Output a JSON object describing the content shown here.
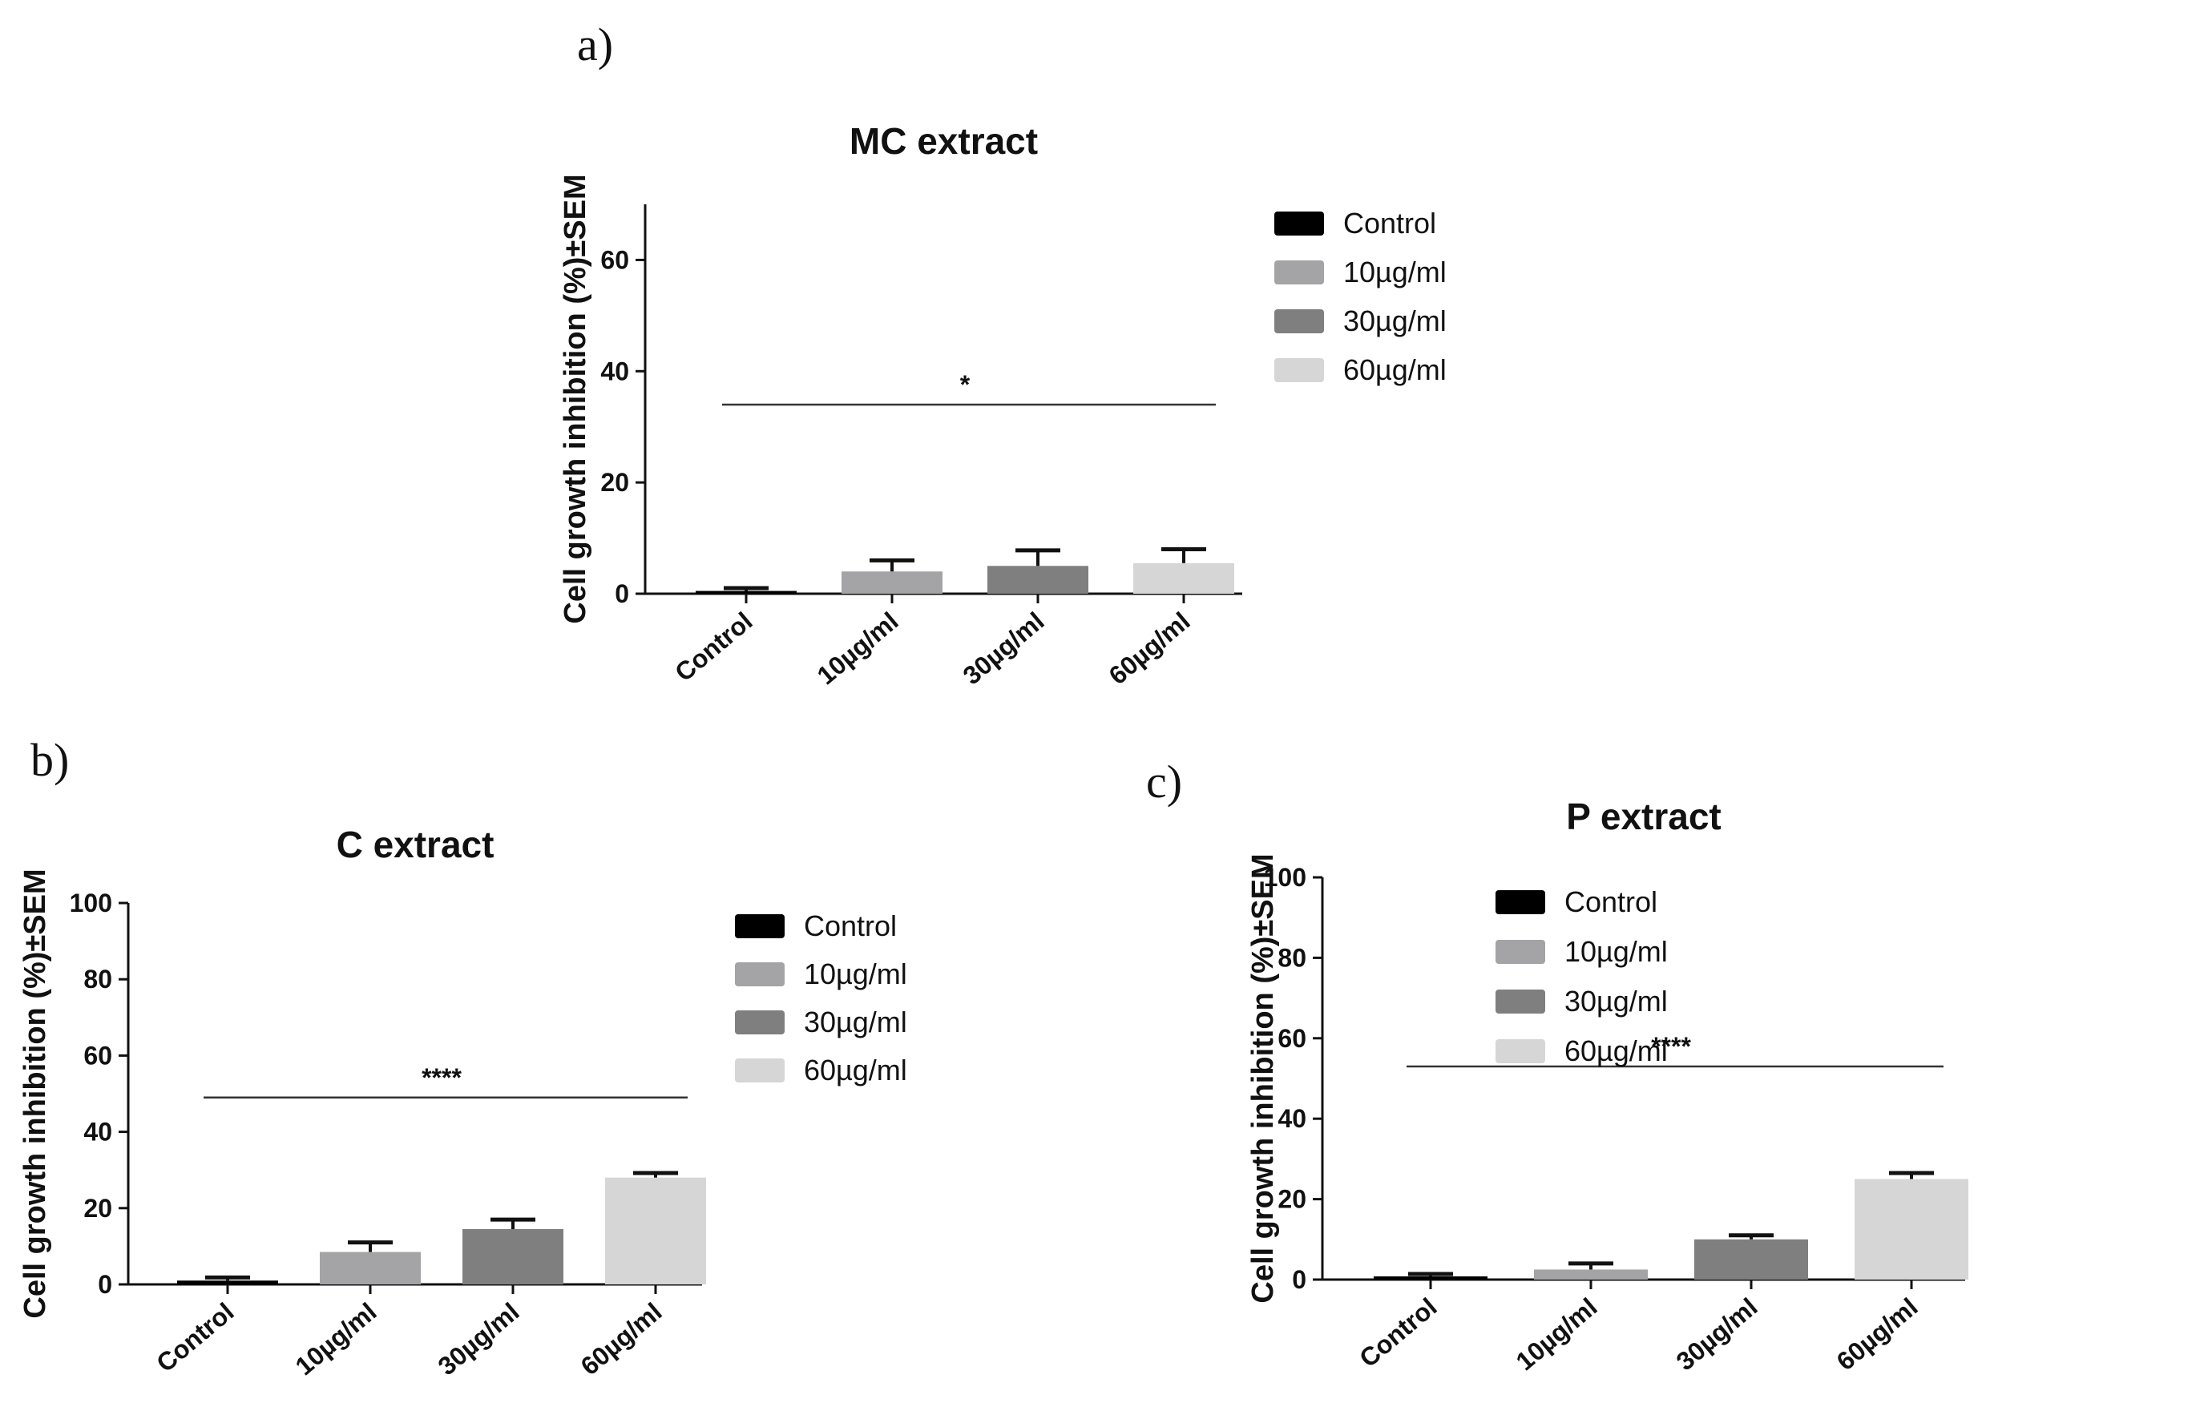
{
  "chart_data": [
    {
      "panel": "a)",
      "type": "bar",
      "title": "MC extract",
      "ylabel": "Cell growth inhibition (%)±SEM",
      "xlabel": "",
      "ylim": [
        0,
        70
      ],
      "yticks": [
        0,
        20,
        40,
        60
      ],
      "categories": [
        "Control",
        "10µg/ml",
        "30µg/ml",
        "60µg/ml"
      ],
      "values": [
        0.5,
        4,
        5,
        5.5
      ],
      "errors": [
        0.5,
        2,
        2.8,
        2.5
      ],
      "legend": [
        "Control",
        "10µg/ml",
        "30µg/ml",
        "60µg/ml"
      ],
      "legend_position": "right",
      "significance": "*",
      "significance_level": 34
    },
    {
      "panel": "b)",
      "type": "bar",
      "title": "C extract",
      "ylabel": "Cell growth inhibition (%)±SEM",
      "xlabel": "",
      "ylim": [
        0,
        100
      ],
      "yticks": [
        0,
        20,
        40,
        60,
        80,
        100
      ],
      "categories": [
        "Control",
        "10µg/ml",
        "30µg/ml",
        "60µg/ml"
      ],
      "values": [
        1,
        8.5,
        14.5,
        28
      ],
      "errors": [
        0.8,
        2.5,
        2.5,
        1.2
      ],
      "legend": [
        "Control",
        "10µg/ml",
        "30µg/ml",
        "60µg/ml"
      ],
      "legend_position": "right",
      "significance": "****",
      "significance_level": 49
    },
    {
      "panel": "c)",
      "type": "bar",
      "title": "P extract",
      "ylabel": "Cell growth inhibition (%)±SEM",
      "xlabel": "",
      "ylim": [
        0,
        100
      ],
      "yticks": [
        0,
        20,
        40,
        60,
        80,
        100
      ],
      "categories": [
        "Control",
        "10µg/ml",
        "30µg/ml",
        "60µg/ml"
      ],
      "values": [
        0.8,
        2.5,
        10,
        25
      ],
      "errors": [
        0.6,
        1.5,
        1,
        1.5
      ],
      "legend": [
        "Control",
        "10µg/ml",
        "30µg/ml",
        "60µg/ml"
      ],
      "legend_position": "right",
      "significance": "****",
      "significance_level": 53
    }
  ],
  "colors": {
    "series": [
      "#000000",
      "#a4a4a6",
      "#7f7f7f",
      "#d6d6d6"
    ],
    "axis": "#111111"
  }
}
